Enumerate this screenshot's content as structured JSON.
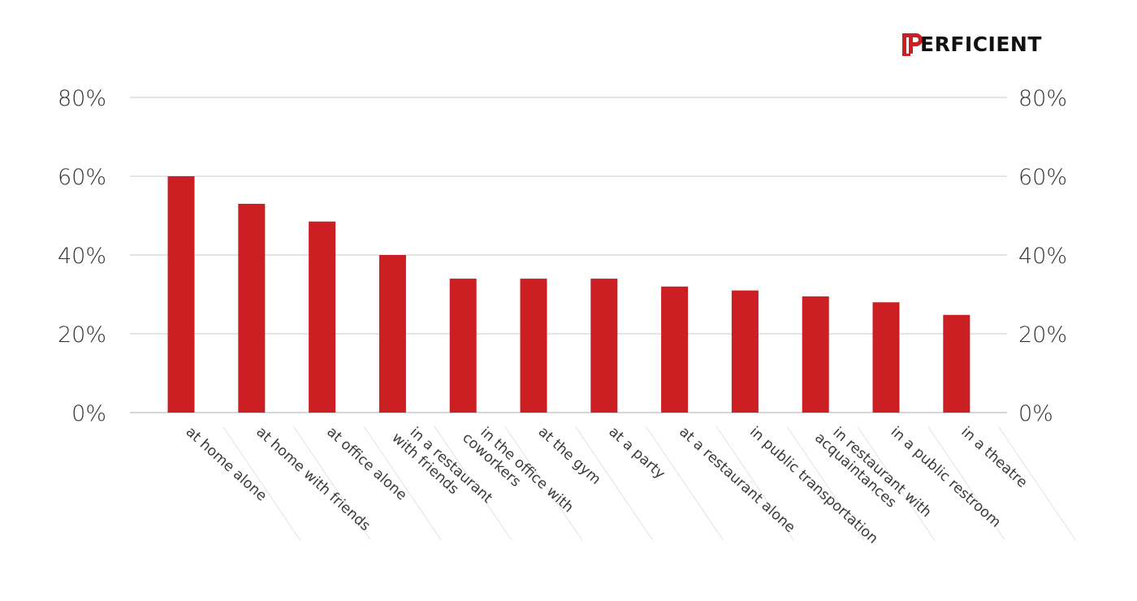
{
  "brand": {
    "logo_text": "PERFICIENT",
    "logo_color": "#cc1f24"
  },
  "chart_data": {
    "type": "bar",
    "title": "",
    "xlabel": "",
    "ylabel": "",
    "ylim": [
      0,
      80
    ],
    "y_ticks": [
      "0%",
      "20%",
      "40%",
      "60%",
      "80%"
    ],
    "y_tick_values": [
      0,
      20,
      40,
      60,
      80
    ],
    "secondary_y_axis": true,
    "grid": true,
    "legend": "none",
    "bar_color": "#cc1f24",
    "categories": [
      [
        "at home alone"
      ],
      [
        "at home with friends"
      ],
      [
        "at office alone"
      ],
      [
        "in a restaurant",
        "with friends"
      ],
      [
        "in the office with",
        "coworkers"
      ],
      [
        "at the gym"
      ],
      [
        "at a party"
      ],
      [
        "at a restaurant alone"
      ],
      [
        "in public transportation"
      ],
      [
        "in restaurant with",
        "acquaintances"
      ],
      [
        "in a public restroom"
      ],
      [
        "in a theatre"
      ]
    ],
    "values": [
      60,
      53,
      48.5,
      40,
      34,
      34,
      34,
      32,
      31,
      29.5,
      28,
      24.8
    ]
  }
}
